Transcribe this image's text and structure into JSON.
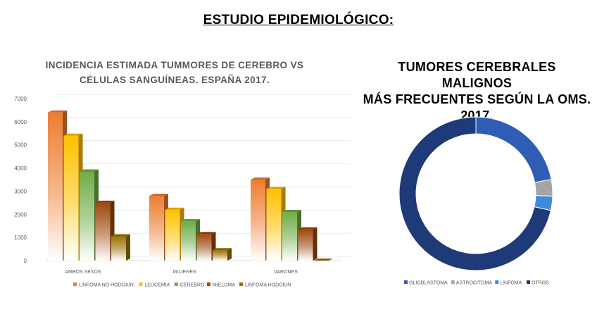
{
  "page": {
    "title": "ESTUDIO EPIDEMIOLÓGICO:"
  },
  "colors": {
    "linfoma_no_hodgkin": "#ED7D31",
    "leucemia": "#FFC000",
    "cerebro": "#70AD47",
    "mieloma": "#9E480E",
    "linfoma_hodgkin": "#997300",
    "glioblastoma": "#2F5DB5",
    "astrocitoma": "#A5A5A5",
    "linfoma": "#3F8BDB",
    "otros": "#1F3A78"
  },
  "chart_data": [
    {
      "type": "bar",
      "title_lines": [
        "INCIDENCIA ESTIMADA TUMMORES DE CEREBRO VS",
        "CÉLULAS SANGUÍNEAS. ESPAÑA 2017."
      ],
      "categories": [
        "AMBOS SEXOS",
        "MUJERES",
        "VARONES"
      ],
      "series": [
        {
          "name": "LINFOMA NO HODGKIN",
          "values": [
            6400,
            2800,
            3500
          ]
        },
        {
          "name": "LEUCEMIA",
          "values": [
            5400,
            2200,
            3100
          ]
        },
        {
          "name": "CEREBRO",
          "values": [
            3850,
            1700,
            2100
          ]
        },
        {
          "name": "MIELOMA",
          "values": [
            2500,
            1150,
            1350
          ]
        },
        {
          "name": "LINFOMA HODGKIN",
          "values": [
            1050,
            450,
            0
          ]
        }
      ],
      "ylim": [
        0,
        7000
      ],
      "yticks": [
        "0",
        "1000",
        "2000",
        "3000",
        "4000",
        "5000",
        "6000",
        "7000"
      ],
      "grid": true,
      "legend": "bottom"
    },
    {
      "type": "pie",
      "variant": "donut",
      "title_lines": [
        "TUMORES CEREBRALES MALIGNOS",
        "MÁS FRECUENTES SEGÚN LA OMS.",
        "2017."
      ],
      "labels": [
        "GLIOBLASTOMA",
        "ASTROCITOMA",
        "LINFOMA",
        "OTROS"
      ],
      "values": [
        22,
        3.5,
        3,
        71.5
      ],
      "legend": "bottom"
    }
  ]
}
